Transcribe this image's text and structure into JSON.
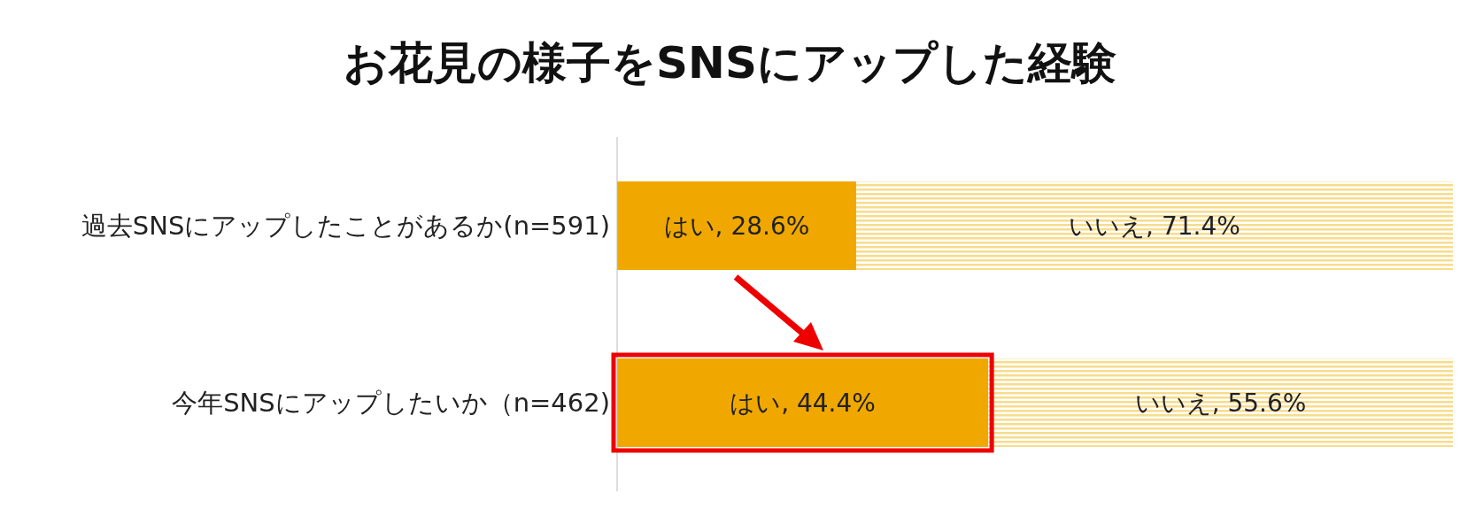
{
  "chart_data": {
    "type": "bar",
    "orientation": "horizontal",
    "stacked": true,
    "title": "お花見の様子をSNSにアップした経験",
    "categories": [
      "過去SNSにアップしたことがあるか(n=591)",
      "今年SNSにアップしたいか（n=462)"
    ],
    "series": [
      {
        "color": "#f0a800",
        "values": [
          28.6,
          44.4
        ],
        "value_labels": [
          "はい, 28.6%",
          "はい, 44.4%"
        ]
      },
      {
        "color": "#f7dc8c",
        "values": [
          71.4,
          55.6
        ],
        "value_labels": [
          "いいえ, 71.4%",
          "いいえ, 55.6%"
        ]
      }
    ],
    "legend": false,
    "grid": false
  }
}
